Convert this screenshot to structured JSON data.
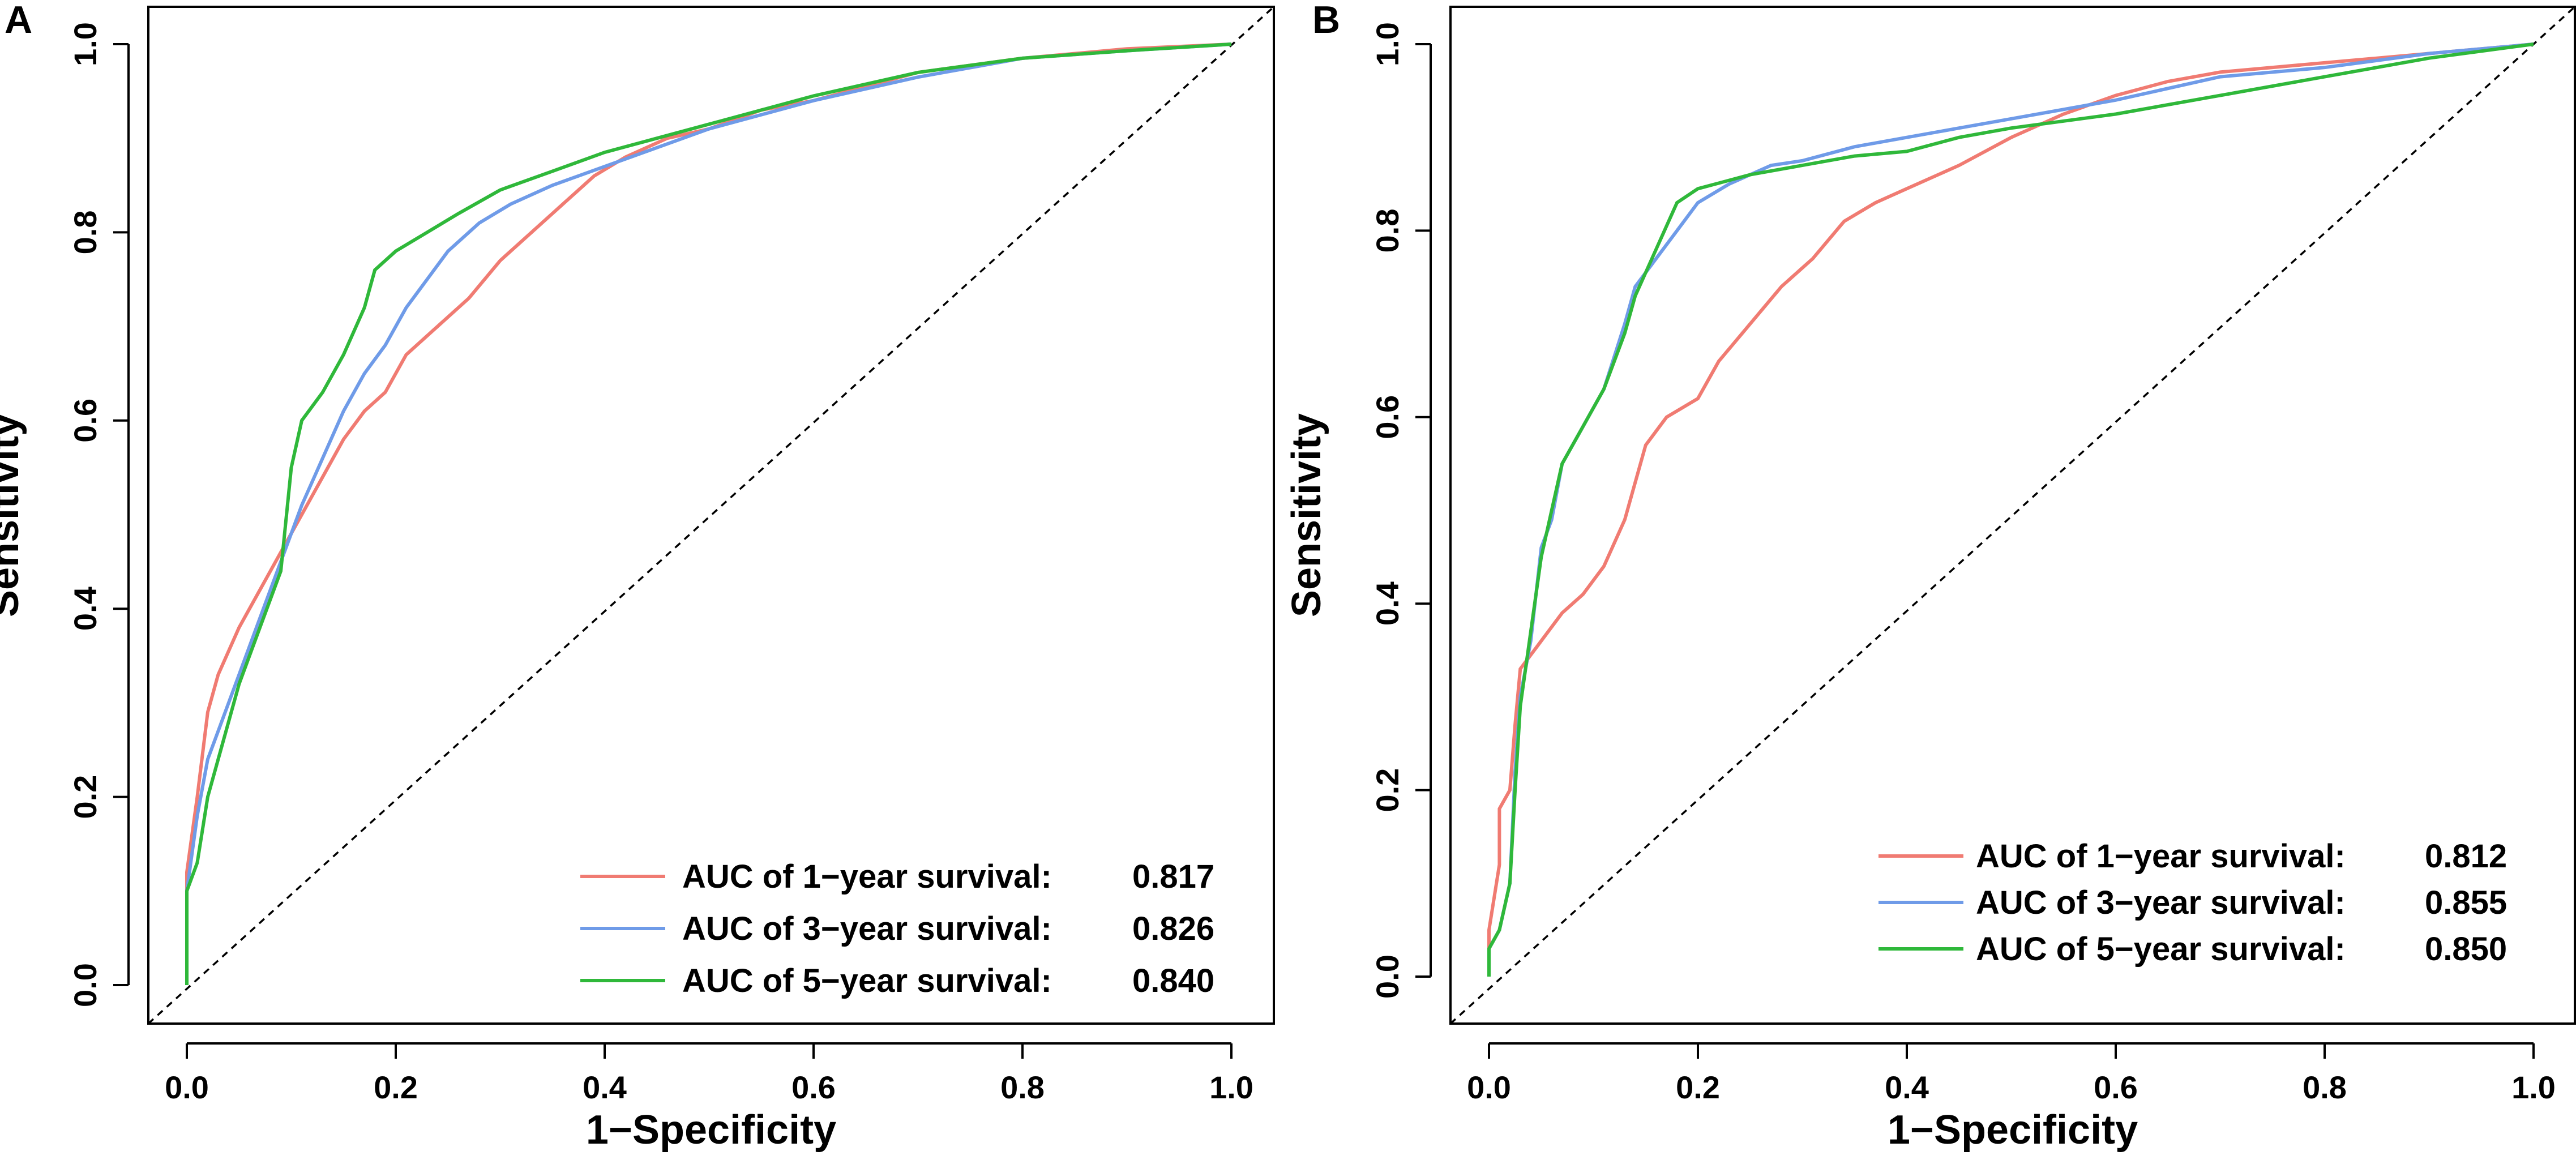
{
  "chart_data": [
    {
      "panel": "A",
      "type": "line",
      "xlabel": "1−Specificity",
      "ylabel": "Sensitivity",
      "xlim": [
        0,
        1
      ],
      "ylim": [
        0,
        1
      ],
      "xticks": [
        "0.0",
        "0.2",
        "0.4",
        "0.6",
        "0.8",
        "1.0"
      ],
      "yticks": [
        "0.0",
        "0.2",
        "0.4",
        "0.6",
        "0.8",
        "1.0"
      ],
      "legend_position": "bottom-right",
      "reference_line": "diagonal dashed",
      "series": [
        {
          "name": "1-year",
          "label": "AUC of 1−year survival:",
          "auc": "0.817",
          "color": "#f07b72",
          "points": [
            [
              0,
              0
            ],
            [
              0,
              0.12
            ],
            [
              0.01,
              0.2
            ],
            [
              0.02,
              0.29
            ],
            [
              0.03,
              0.33
            ],
            [
              0.05,
              0.38
            ],
            [
              0.07,
              0.42
            ],
            [
              0.09,
              0.46
            ],
            [
              0.11,
              0.5
            ],
            [
              0.13,
              0.54
            ],
            [
              0.15,
              0.58
            ],
            [
              0.17,
              0.61
            ],
            [
              0.19,
              0.63
            ],
            [
              0.21,
              0.67
            ],
            [
              0.24,
              0.7
            ],
            [
              0.27,
              0.73
            ],
            [
              0.3,
              0.77
            ],
            [
              0.33,
              0.8
            ],
            [
              0.36,
              0.83
            ],
            [
              0.39,
              0.86
            ],
            [
              0.42,
              0.88
            ],
            [
              0.46,
              0.9
            ],
            [
              0.5,
              0.91
            ],
            [
              0.55,
              0.93
            ],
            [
              0.6,
              0.94
            ],
            [
              0.65,
              0.955
            ],
            [
              0.7,
              0.97
            ],
            [
              0.8,
              0.985
            ],
            [
              0.9,
              0.995
            ],
            [
              1,
              1
            ]
          ]
        },
        {
          "name": "3-year",
          "label": "AUC of 3−year survival:",
          "auc": "0.826",
          "color": "#6f9be8",
          "points": [
            [
              0,
              0
            ],
            [
              0,
              0.1
            ],
            [
              0.01,
              0.18
            ],
            [
              0.02,
              0.24
            ],
            [
              0.03,
              0.27
            ],
            [
              0.05,
              0.33
            ],
            [
              0.07,
              0.39
            ],
            [
              0.09,
              0.45
            ],
            [
              0.11,
              0.51
            ],
            [
              0.13,
              0.56
            ],
            [
              0.15,
              0.61
            ],
            [
              0.17,
              0.65
            ],
            [
              0.19,
              0.68
            ],
            [
              0.21,
              0.72
            ],
            [
              0.23,
              0.75
            ],
            [
              0.25,
              0.78
            ],
            [
              0.28,
              0.81
            ],
            [
              0.31,
              0.83
            ],
            [
              0.35,
              0.85
            ],
            [
              0.4,
              0.87
            ],
            [
              0.45,
              0.89
            ],
            [
              0.5,
              0.91
            ],
            [
              0.6,
              0.94
            ],
            [
              0.7,
              0.965
            ],
            [
              0.8,
              0.985
            ],
            [
              0.9,
              0.993
            ],
            [
              1,
              1
            ]
          ]
        },
        {
          "name": "5-year",
          "label": "AUC of 5−year survival:",
          "auc": "0.840",
          "color": "#2fb83a",
          "points": [
            [
              0,
              0
            ],
            [
              0,
              0.1
            ],
            [
              0.01,
              0.13
            ],
            [
              0.02,
              0.2
            ],
            [
              0.03,
              0.24
            ],
            [
              0.05,
              0.32
            ],
            [
              0.07,
              0.38
            ],
            [
              0.09,
              0.44
            ],
            [
              0.1,
              0.55
            ],
            [
              0.11,
              0.6
            ],
            [
              0.13,
              0.63
            ],
            [
              0.15,
              0.67
            ],
            [
              0.17,
              0.72
            ],
            [
              0.18,
              0.76
            ],
            [
              0.2,
              0.78
            ],
            [
              0.23,
              0.8
            ],
            [
              0.26,
              0.82
            ],
            [
              0.3,
              0.845
            ],
            [
              0.35,
              0.865
            ],
            [
              0.4,
              0.885
            ],
            [
              0.45,
              0.9
            ],
            [
              0.5,
              0.915
            ],
            [
              0.6,
              0.945
            ],
            [
              0.7,
              0.97
            ],
            [
              0.8,
              0.985
            ],
            [
              0.9,
              0.993
            ],
            [
              1,
              1
            ]
          ]
        }
      ]
    },
    {
      "panel": "B",
      "type": "line",
      "xlabel": "1−Specificity",
      "ylabel": "Sensitivity",
      "xlim": [
        0,
        1
      ],
      "ylim": [
        0,
        1
      ],
      "xticks": [
        "0.0",
        "0.2",
        "0.4",
        "0.6",
        "0.8",
        "1.0"
      ],
      "yticks": [
        "0.0",
        "0.2",
        "0.4",
        "0.6",
        "0.8",
        "1.0"
      ],
      "legend_position": "bottom-right",
      "reference_line": "diagonal dashed",
      "series": [
        {
          "name": "1-year",
          "label": "AUC of 1−year survival:",
          "auc": "0.812",
          "color": "#f07b72",
          "points": [
            [
              0,
              0
            ],
            [
              0,
              0.05
            ],
            [
              0.01,
              0.12
            ],
            [
              0.01,
              0.18
            ],
            [
              0.02,
              0.2
            ],
            [
              0.025,
              0.27
            ],
            [
              0.03,
              0.33
            ],
            [
              0.05,
              0.36
            ],
            [
              0.07,
              0.39
            ],
            [
              0.09,
              0.41
            ],
            [
              0.11,
              0.44
            ],
            [
              0.13,
              0.49
            ],
            [
              0.14,
              0.53
            ],
            [
              0.15,
              0.57
            ],
            [
              0.17,
              0.6
            ],
            [
              0.2,
              0.62
            ],
            [
              0.22,
              0.66
            ],
            [
              0.25,
              0.7
            ],
            [
              0.28,
              0.74
            ],
            [
              0.31,
              0.77
            ],
            [
              0.34,
              0.81
            ],
            [
              0.37,
              0.83
            ],
            [
              0.4,
              0.845
            ],
            [
              0.45,
              0.87
            ],
            [
              0.5,
              0.9
            ],
            [
              0.55,
              0.925
            ],
            [
              0.6,
              0.945
            ],
            [
              0.65,
              0.96
            ],
            [
              0.7,
              0.97
            ],
            [
              0.8,
              0.98
            ],
            [
              0.9,
              0.99
            ],
            [
              1,
              1
            ]
          ]
        },
        {
          "name": "3-year",
          "label": "AUC of 3−year survival:",
          "auc": "0.855",
          "color": "#6f9be8",
          "points": [
            [
              0,
              0
            ],
            [
              0,
              0.03
            ],
            [
              0.01,
              0.05
            ],
            [
              0.02,
              0.1
            ],
            [
              0.025,
              0.22
            ],
            [
              0.03,
              0.3
            ],
            [
              0.04,
              0.36
            ],
            [
              0.05,
              0.46
            ],
            [
              0.06,
              0.49
            ],
            [
              0.07,
              0.55
            ],
            [
              0.09,
              0.59
            ],
            [
              0.11,
              0.63
            ],
            [
              0.13,
              0.7
            ],
            [
              0.14,
              0.74
            ],
            [
              0.16,
              0.77
            ],
            [
              0.18,
              0.8
            ],
            [
              0.2,
              0.83
            ],
            [
              0.23,
              0.85
            ],
            [
              0.27,
              0.87
            ],
            [
              0.3,
              0.875
            ],
            [
              0.35,
              0.89
            ],
            [
              0.4,
              0.9
            ],
            [
              0.45,
              0.91
            ],
            [
              0.5,
              0.92
            ],
            [
              0.6,
              0.94
            ],
            [
              0.7,
              0.965
            ],
            [
              0.8,
              0.975
            ],
            [
              0.9,
              0.99
            ],
            [
              1,
              1
            ]
          ]
        },
        {
          "name": "5-year",
          "label": "AUC of 5−year survival:",
          "auc": "0.850",
          "color": "#2fb83a",
          "points": [
            [
              0,
              0
            ],
            [
              0,
              0.03
            ],
            [
              0.01,
              0.05
            ],
            [
              0.02,
              0.1
            ],
            [
              0.025,
              0.2
            ],
            [
              0.03,
              0.29
            ],
            [
              0.04,
              0.37
            ],
            [
              0.05,
              0.45
            ],
            [
              0.06,
              0.5
            ],
            [
              0.07,
              0.55
            ],
            [
              0.09,
              0.59
            ],
            [
              0.11,
              0.63
            ],
            [
              0.13,
              0.69
            ],
            [
              0.14,
              0.73
            ],
            [
              0.16,
              0.78
            ],
            [
              0.18,
              0.83
            ],
            [
              0.2,
              0.845
            ],
            [
              0.25,
              0.86
            ],
            [
              0.3,
              0.87
            ],
            [
              0.35,
              0.88
            ],
            [
              0.4,
              0.885
            ],
            [
              0.45,
              0.9
            ],
            [
              0.5,
              0.91
            ],
            [
              0.6,
              0.925
            ],
            [
              0.7,
              0.945
            ],
            [
              0.8,
              0.965
            ],
            [
              0.9,
              0.985
            ],
            [
              1,
              1
            ]
          ]
        }
      ]
    }
  ]
}
